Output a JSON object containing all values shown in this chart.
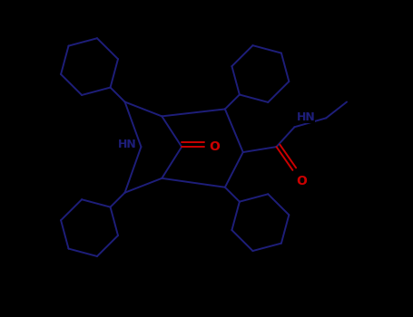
{
  "background_color": "#000000",
  "bond_color": "#1e1e7a",
  "N_color": "#1e1e7a",
  "O_color": "#cc0000",
  "font_size_atom": 9,
  "fig_width": 4.55,
  "fig_height": 3.5,
  "dpi": 100,
  "lw": 1.4,
  "xlim": [
    0,
    10
  ],
  "ylim": [
    0,
    7.7
  ]
}
